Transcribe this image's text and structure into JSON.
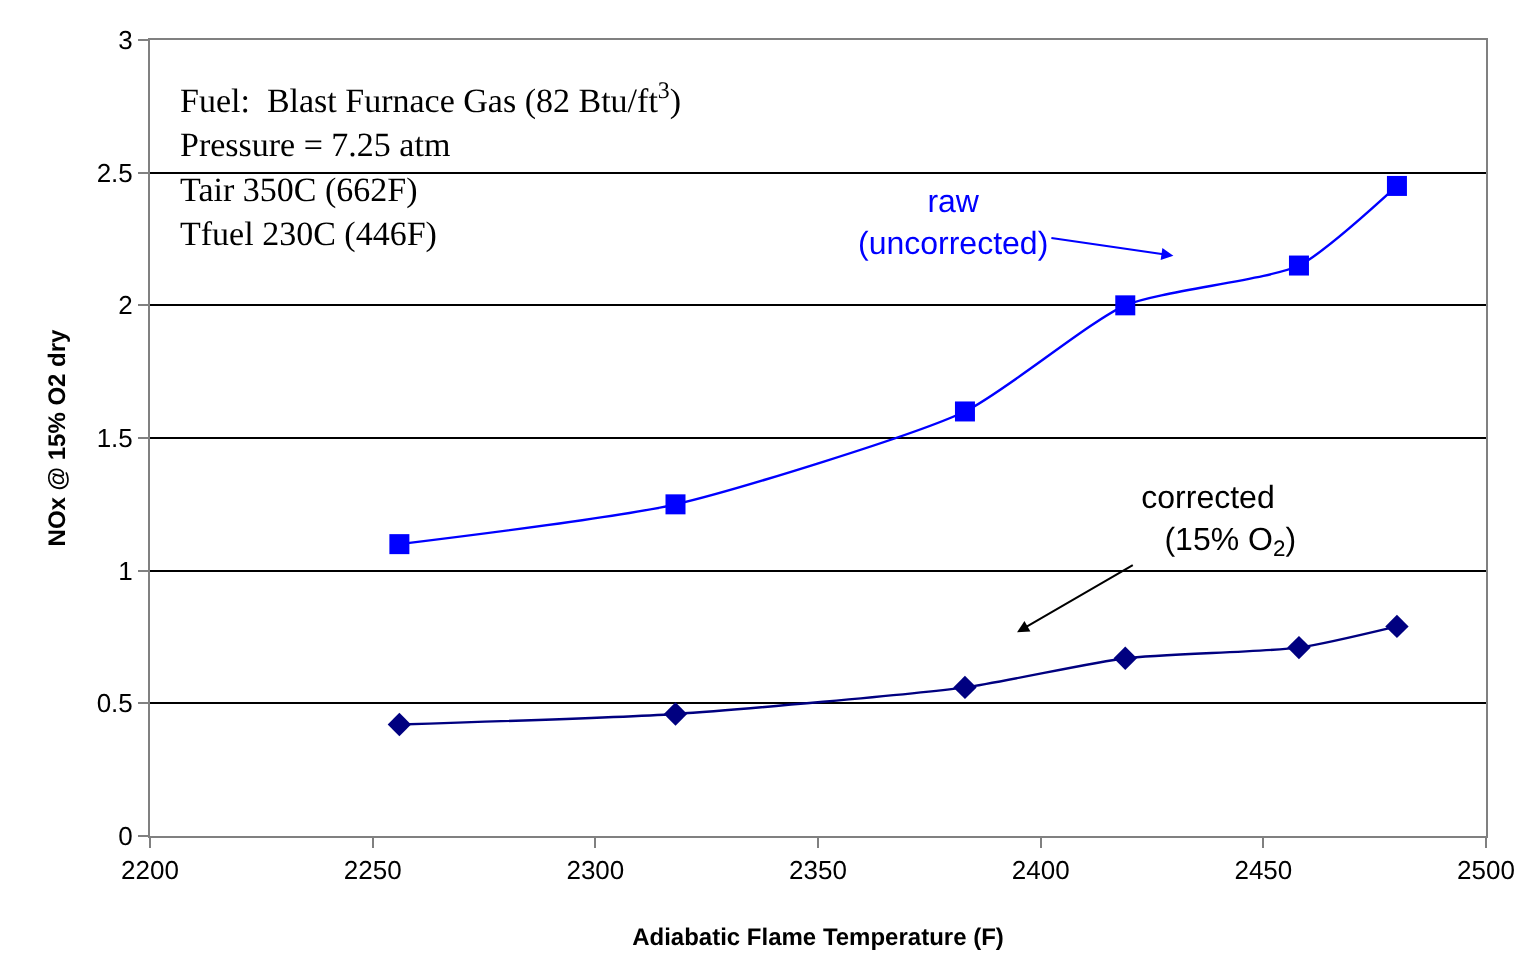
{
  "chart_data": {
    "type": "line",
    "x": [
      2256,
      2318,
      2383,
      2419,
      2458,
      2480
    ],
    "series": [
      {
        "name": null,
        "color": "#0000ff",
        "marker": "square",
        "values": [
          1.1,
          1.25,
          1.6,
          2.0,
          2.15,
          2.45
        ]
      },
      {
        "name": null,
        "color": "#000080",
        "marker": "diamond",
        "values": [
          0.42,
          0.46,
          0.56,
          0.67,
          0.71,
          0.79
        ]
      }
    ],
    "xlabel": "Adiabatic Flame Temperature (F)",
    "ylabel": "NOx @ 15% O2 dry",
    "xlim": [
      2200,
      2500
    ],
    "xticks": [
      2200,
      2250,
      2300,
      2350,
      2400,
      2450,
      2500
    ],
    "ylim": [
      0,
      3
    ],
    "yticks": [
      0,
      0.5,
      1,
      1.5,
      2,
      2.5,
      3
    ],
    "grid": "y",
    "line_style": "solid",
    "annotations": [
      "Fuel:  Blast Furnace Gas (82 Btu/ft$^{3}$)\nPressure = 7.25 atm\nTair 350C (662F)\nTfuel 230C (446F)",
      "raw\n(uncorrected)",
      "corrected\n     (15% O$_{2}$)"
    ]
  }
}
